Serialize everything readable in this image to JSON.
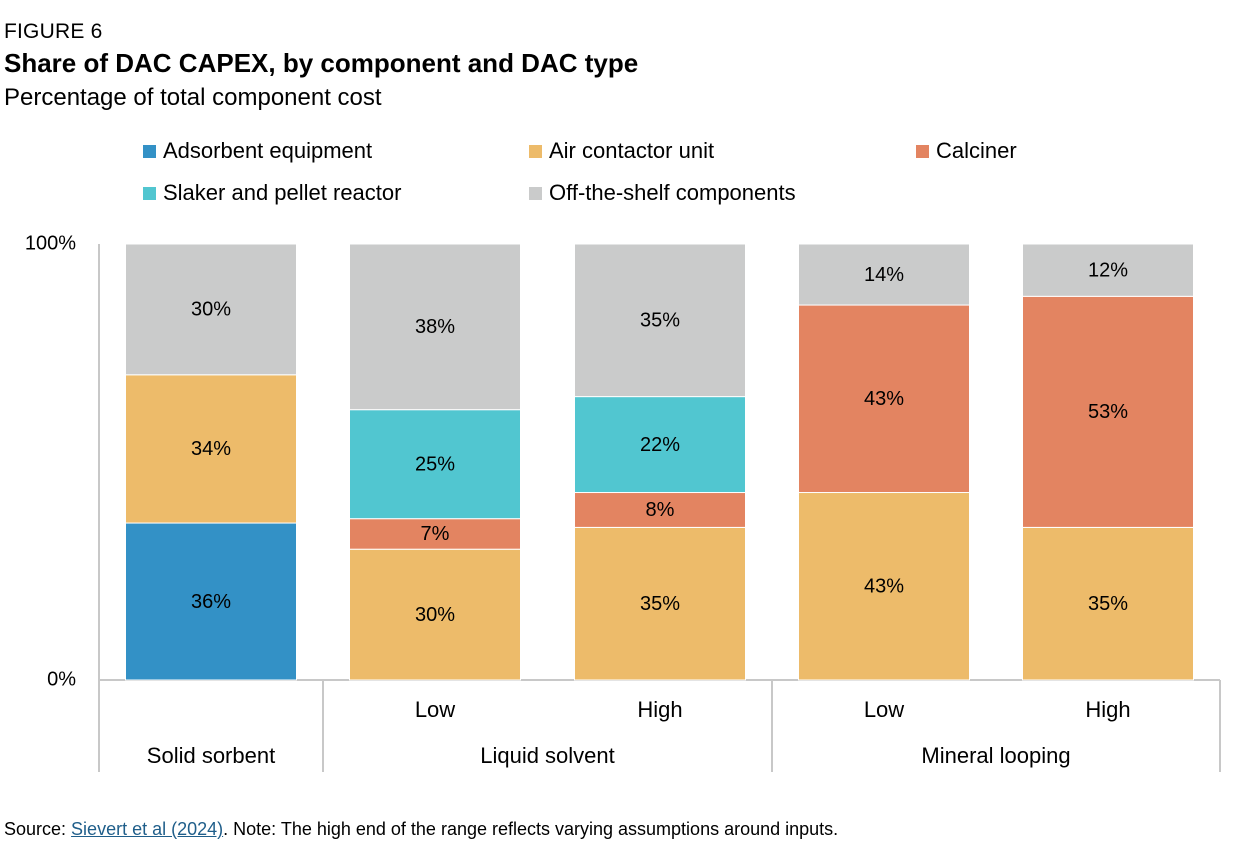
{
  "figure_label": "FIGURE 6",
  "title": "Share of DAC CAPEX, by component and DAC type",
  "subtitle": "Percentage of total component cost",
  "source": {
    "prefix": "Source: ",
    "link_text": "Sievert et al (2024)",
    "suffix": ". Note: The high end of the range reflects varying assumptions around inputs."
  },
  "chart_data": {
    "type": "bar",
    "stacked": true,
    "ylim": [
      0,
      100
    ],
    "yticks": [
      "0%",
      "100%"
    ],
    "legend_placement": "top",
    "legend": [
      {
        "name": "Adsorbent equipment",
        "color": "#3391c6"
      },
      {
        "name": "Air contactor unit",
        "color": "#edbb6a"
      },
      {
        "name": "Calciner",
        "color": "#e38461"
      },
      {
        "name": "Slaker and pellet reactor",
        "color": "#51c6d0"
      },
      {
        "name": "Off-the-shelf components",
        "color": "#cacbcb"
      }
    ],
    "groups": [
      {
        "label": "Solid sorbent",
        "bars": [
          {
            "sublabel": "",
            "segments": [
              {
                "component": "Adsorbent equipment",
                "value": 36,
                "label": "36%"
              },
              {
                "component": "Air contactor unit",
                "value": 34,
                "label": "34%"
              },
              {
                "component": "Off-the-shelf components",
                "value": 30,
                "label": "30%"
              }
            ]
          }
        ]
      },
      {
        "label": "Liquid solvent",
        "bars": [
          {
            "sublabel": "Low",
            "segments": [
              {
                "component": "Air contactor unit",
                "value": 30,
                "label": "30%"
              },
              {
                "component": "Calciner",
                "value": 7,
                "label": "7%"
              },
              {
                "component": "Slaker and pellet reactor",
                "value": 25,
                "label": "25%"
              },
              {
                "component": "Off-the-shelf components",
                "value": 38,
                "label": "38%"
              }
            ]
          },
          {
            "sublabel": "High",
            "segments": [
              {
                "component": "Air contactor unit",
                "value": 35,
                "label": "35%"
              },
              {
                "component": "Calciner",
                "value": 8,
                "label": "8%"
              },
              {
                "component": "Slaker and pellet reactor",
                "value": 22,
                "label": "22%"
              },
              {
                "component": "Off-the-shelf components",
                "value": 35,
                "label": "35%"
              }
            ]
          }
        ]
      },
      {
        "label": "Mineral looping",
        "bars": [
          {
            "sublabel": "Low",
            "segments": [
              {
                "component": "Air contactor unit",
                "value": 43,
                "label": "43%"
              },
              {
                "component": "Calciner",
                "value": 43,
                "label": "43%"
              },
              {
                "component": "Off-the-shelf components",
                "value": 14,
                "label": "14%"
              }
            ]
          },
          {
            "sublabel": "High",
            "segments": [
              {
                "component": "Air contactor unit",
                "value": 35,
                "label": "35%"
              },
              {
                "component": "Calciner",
                "value": 53,
                "label": "53%"
              },
              {
                "component": "Off-the-shelf components",
                "value": 12,
                "label": "12%"
              }
            ]
          }
        ]
      }
    ]
  }
}
